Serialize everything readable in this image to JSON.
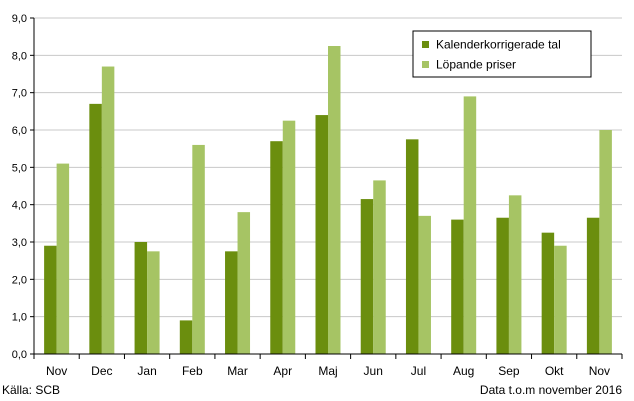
{
  "colors": {
    "series1": "#6b8e0e",
    "series2": "#a6c464",
    "plot_background": "#ffffff",
    "gridline": "#c8c8c8"
  },
  "chart_data": {
    "type": "bar",
    "categories": [
      "Nov",
      "Dec",
      "Jan",
      "Feb",
      "Mar",
      "Apr",
      "Maj",
      "Jun",
      "Jul",
      "Aug",
      "Sep",
      "Okt",
      "Nov"
    ],
    "series": [
      {
        "name": "Kalenderkorrigerade tal",
        "values": [
          2.9,
          6.7,
          3.0,
          0.9,
          2.75,
          5.7,
          6.4,
          4.15,
          5.75,
          3.6,
          3.65,
          3.25,
          3.65
        ]
      },
      {
        "name": "Löpande priser",
        "values": [
          5.1,
          7.7,
          2.75,
          5.6,
          3.8,
          6.25,
          8.25,
          4.65,
          3.7,
          6.9,
          4.25,
          2.9,
          6.0
        ]
      }
    ],
    "yticks": [
      "0,0",
      "1,0",
      "2,0",
      "3,0",
      "4,0",
      "5,0",
      "6,0",
      "7,0",
      "8,0",
      "9,0"
    ],
    "ylim": [
      0,
      9
    ],
    "title": "",
    "xlabel": "",
    "ylabel": "",
    "grid": "horizontal",
    "legend": "top-right"
  },
  "footer": {
    "source": "Källa: SCB",
    "note": "Data t.o.m november  2016"
  }
}
